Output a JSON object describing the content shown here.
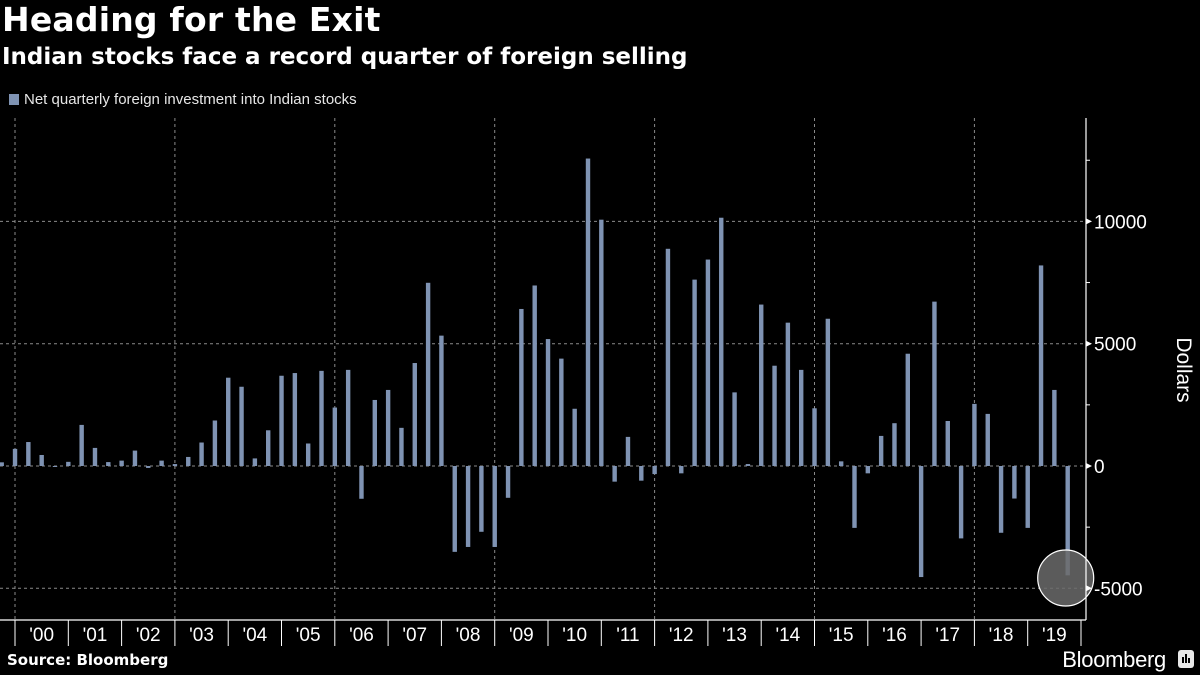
{
  "header": {
    "title": "Heading for the Exit",
    "subtitle": "Indian stocks face a record quarter of foreign selling"
  },
  "footer": {
    "source": "Source: Bloomberg",
    "brand": "Bloomberg"
  },
  "colors": {
    "bar": "#7f93b3",
    "background": "#000000",
    "highlight": "#6b6b6b"
  },
  "chart_data": {
    "type": "bar",
    "title": "Heading for the Exit",
    "subtitle": "Indian stocks face a record quarter of foreign selling",
    "legend": [
      "Net quarterly foreign investment into Indian stocks"
    ],
    "legend_position": "top-left",
    "xlabel": "",
    "ylabel": "Dollars",
    "ylim": [
      -6300,
      14200
    ],
    "yticks": [
      -5000,
      0,
      5000,
      10000
    ],
    "ytick_labels": [
      "-5000",
      "0",
      "5000",
      "10000"
    ],
    "grid": true,
    "x_tick_labels": [
      "'00",
      "'01",
      "'02",
      "'03",
      "'04",
      "'05",
      "'06",
      "'07",
      "'08",
      "'09",
      "'10",
      "'11",
      "'12",
      "'13",
      "'14",
      "'15",
      "'16",
      "'17",
      "'18",
      "'19"
    ],
    "highlight": {
      "category": "Q3 2019",
      "shape": "circle"
    },
    "categories": [
      "Q3 1999",
      "Q4 1999",
      "Q1 2000",
      "Q2 2000",
      "Q3 2000",
      "Q4 2000",
      "Q1 2001",
      "Q2 2001",
      "Q3 2001",
      "Q4 2001",
      "Q1 2002",
      "Q2 2002",
      "Q3 2002",
      "Q4 2002",
      "Q1 2003",
      "Q2 2003",
      "Q3 2003",
      "Q4 2003",
      "Q1 2004",
      "Q2 2004",
      "Q3 2004",
      "Q4 2004",
      "Q1 2005",
      "Q2 2005",
      "Q3 2005",
      "Q4 2005",
      "Q1 2006",
      "Q2 2006",
      "Q3 2006",
      "Q4 2006",
      "Q1 2007",
      "Q2 2007",
      "Q3 2007",
      "Q4 2007",
      "Q1 2008",
      "Q2 2008",
      "Q3 2008",
      "Q4 2008",
      "Q1 2009",
      "Q2 2009",
      "Q3 2009",
      "Q4 2009",
      "Q1 2010",
      "Q2 2010",
      "Q3 2010",
      "Q4 2010",
      "Q1 2011",
      "Q2 2011",
      "Q3 2011",
      "Q4 2011",
      "Q1 2012",
      "Q2 2012",
      "Q3 2012",
      "Q4 2012",
      "Q1 2013",
      "Q2 2013",
      "Q3 2013",
      "Q4 2013",
      "Q1 2014",
      "Q2 2014",
      "Q3 2014",
      "Q4 2014",
      "Q1 2015",
      "Q2 2015",
      "Q3 2015",
      "Q4 2015",
      "Q1 2016",
      "Q2 2016",
      "Q3 2016",
      "Q4 2016",
      "Q1 2017",
      "Q2 2017",
      "Q3 2017",
      "Q4 2017",
      "Q1 2018",
      "Q2 2018",
      "Q3 2018",
      "Q4 2018",
      "Q1 2019",
      "Q2 2019",
      "Q3 2019"
    ],
    "series": [
      {
        "name": "Net quarterly foreign investment into Indian stocks",
        "values": [
          150,
          700,
          980,
          450,
          -20,
          170,
          1680,
          740,
          160,
          220,
          630,
          -80,
          220,
          80,
          370,
          960,
          1860,
          3610,
          3240,
          310,
          1460,
          3690,
          3800,
          920,
          3890,
          2390,
          3930,
          -1340,
          2700,
          3110,
          1560,
          4210,
          7490,
          5330,
          -3510,
          -3310,
          -2690,
          -3310,
          -1300,
          6420,
          7380,
          5190,
          4390,
          2340,
          12570,
          10070,
          -640,
          1190,
          -600,
          -330,
          8880,
          -300,
          7620,
          8440,
          10150,
          3010,
          80,
          6600,
          4100,
          5860,
          3930,
          2360,
          6020,
          190,
          -2530,
          -300,
          1230,
          1750,
          4590,
          -4540,
          6720,
          1840,
          -2960,
          2540,
          2130,
          -2730,
          -1330,
          -2530,
          8200,
          3110,
          -4470
        ]
      }
    ]
  }
}
